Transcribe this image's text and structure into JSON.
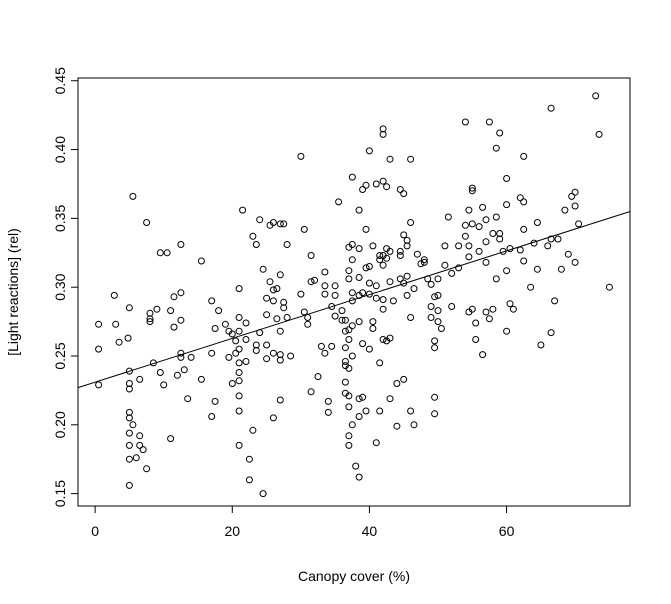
{
  "chart_data": {
    "type": "scatter",
    "title": "",
    "xlabel": "Canopy cover (%)",
    "ylabel": "[Light reactions] (rel)",
    "xlim": [
      -2.5,
      78
    ],
    "ylim": [
      0.141,
      0.452
    ],
    "x_ticks": [
      0,
      20,
      40,
      60
    ],
    "x_tick_labels": [
      "0",
      "20",
      "40",
      "60"
    ],
    "y_ticks": [
      0.15,
      0.2,
      0.25,
      0.3,
      0.35,
      0.4,
      0.45
    ],
    "y_tick_labels": [
      "0.15",
      "0.20",
      "0.25",
      "0.30",
      "0.35",
      "0.40",
      "0.45"
    ],
    "grid": false,
    "legend": "none",
    "marker": "open-circle",
    "colors": {
      "points": "#000000",
      "line": "#000000",
      "background": "#ffffff"
    },
    "regression_line": {
      "x": [
        -2.5,
        78
      ],
      "y": [
        0.227,
        0.355
      ]
    },
    "points": [
      [
        0.5,
        0.229
      ],
      [
        0.5,
        0.255
      ],
      [
        0.5,
        0.273
      ],
      [
        2.8,
        0.294
      ],
      [
        3.0,
        0.273
      ],
      [
        3.5,
        0.26
      ],
      [
        4.8,
        0.263
      ],
      [
        5.0,
        0.285
      ],
      [
        5.0,
        0.239
      ],
      [
        5.0,
        0.23
      ],
      [
        5.0,
        0.226
      ],
      [
        5.0,
        0.209
      ],
      [
        5.0,
        0.205
      ],
      [
        5.0,
        0.194
      ],
      [
        5.0,
        0.185
      ],
      [
        5.0,
        0.175
      ],
      [
        5.0,
        0.156
      ],
      [
        5.5,
        0.366
      ],
      [
        5.5,
        0.2
      ],
      [
        6.0,
        0.176
      ],
      [
        6.5,
        0.192
      ],
      [
        6.5,
        0.185
      ],
      [
        6.5,
        0.233
      ],
      [
        7.0,
        0.182
      ],
      [
        7.5,
        0.347
      ],
      [
        7.5,
        0.168
      ],
      [
        8.0,
        0.281
      ],
      [
        8.0,
        0.277
      ],
      [
        8.0,
        0.275
      ],
      [
        8.5,
        0.245
      ],
      [
        9.0,
        0.284
      ],
      [
        9.5,
        0.238
      ],
      [
        9.5,
        0.325
      ],
      [
        10.0,
        0.229
      ],
      [
        10.5,
        0.325
      ],
      [
        11.0,
        0.19
      ],
      [
        11.0,
        0.283
      ],
      [
        11.5,
        0.271
      ],
      [
        11.5,
        0.293
      ],
      [
        12.0,
        0.236
      ],
      [
        12.5,
        0.331
      ],
      [
        12.5,
        0.296
      ],
      [
        12.5,
        0.276
      ],
      [
        12.5,
        0.252
      ],
      [
        12.5,
        0.249
      ],
      [
        13.0,
        0.24
      ],
      [
        13.5,
        0.219
      ],
      [
        14.0,
        0.249
      ],
      [
        15.5,
        0.319
      ],
      [
        15.5,
        0.233
      ],
      [
        17.0,
        0.29
      ],
      [
        17.0,
        0.252
      ],
      [
        17.5,
        0.27
      ],
      [
        17.5,
        0.217
      ],
      [
        17.0,
        0.206
      ],
      [
        18.0,
        0.283
      ],
      [
        19.0,
        0.273
      ],
      [
        19.5,
        0.268
      ],
      [
        19.5,
        0.249
      ],
      [
        20.0,
        0.266
      ],
      [
        20.0,
        0.23
      ],
      [
        20.5,
        0.261
      ],
      [
        20.5,
        0.252
      ],
      [
        21.0,
        0.255
      ],
      [
        21.0,
        0.299
      ],
      [
        21.0,
        0.278
      ],
      [
        21.0,
        0.268
      ],
      [
        21.0,
        0.245
      ],
      [
        21.0,
        0.238
      ],
      [
        21.0,
        0.232
      ],
      [
        21.0,
        0.221
      ],
      [
        21.0,
        0.21
      ],
      [
        21.0,
        0.185
      ],
      [
        21.5,
        0.356
      ],
      [
        22.0,
        0.274
      ],
      [
        22.0,
        0.262
      ],
      [
        22.0,
        0.246
      ],
      [
        22.5,
        0.175
      ],
      [
        22.5,
        0.16
      ],
      [
        23.0,
        0.196
      ],
      [
        23.0,
        0.337
      ],
      [
        23.5,
        0.331
      ],
      [
        23.5,
        0.258
      ],
      [
        23.5,
        0.254
      ],
      [
        24.0,
        0.349
      ],
      [
        24.0,
        0.267
      ],
      [
        24.5,
        0.15
      ],
      [
        24.5,
        0.313
      ],
      [
        25.0,
        0.292
      ],
      [
        25.0,
        0.28
      ],
      [
        25.0,
        0.258
      ],
      [
        25.0,
        0.248
      ],
      [
        25.5,
        0.345
      ],
      [
        25.5,
        0.304
      ],
      [
        26.0,
        0.347
      ],
      [
        26.0,
        0.298
      ],
      [
        26.0,
        0.29
      ],
      [
        26.0,
        0.252
      ],
      [
        26.0,
        0.205
      ],
      [
        26.5,
        0.299
      ],
      [
        26.5,
        0.277
      ],
      [
        27.0,
        0.346
      ],
      [
        27.0,
        0.309
      ],
      [
        27.0,
        0.268
      ],
      [
        27.0,
        0.251
      ],
      [
        27.0,
        0.247
      ],
      [
        27.0,
        0.218
      ],
      [
        27.5,
        0.346
      ],
      [
        27.5,
        0.289
      ],
      [
        27.5,
        0.285
      ],
      [
        28.0,
        0.331
      ],
      [
        28.0,
        0.278
      ],
      [
        28.5,
        0.25
      ],
      [
        30.0,
        0.395
      ],
      [
        30.0,
        0.295
      ],
      [
        30.5,
        0.342
      ],
      [
        30.5,
        0.282
      ],
      [
        31.0,
        0.278
      ],
      [
        31.0,
        0.273
      ],
      [
        31.5,
        0.323
      ],
      [
        31.5,
        0.304
      ],
      [
        31.5,
        0.224
      ],
      [
        32.0,
        0.305
      ],
      [
        32.5,
        0.235
      ],
      [
        33.0,
        0.257
      ],
      [
        33.5,
        0.301
      ],
      [
        33.5,
        0.295
      ],
      [
        33.5,
        0.252
      ],
      [
        33.5,
        0.311
      ],
      [
        34.0,
        0.217
      ],
      [
        34.0,
        0.209
      ],
      [
        34.5,
        0.286
      ],
      [
        34.5,
        0.257
      ],
      [
        35.0,
        0.294
      ],
      [
        35.0,
        0.279
      ],
      [
        35.0,
        0.301
      ],
      [
        35.5,
        0.362
      ],
      [
        36.0,
        0.283
      ],
      [
        36.0,
        0.276
      ],
      [
        36.5,
        0.276
      ],
      [
        36.5,
        0.268
      ],
      [
        36.5,
        0.256
      ],
      [
        36.5,
        0.246
      ],
      [
        36.5,
        0.243
      ],
      [
        36.5,
        0.231
      ],
      [
        36.5,
        0.223
      ],
      [
        37.0,
        0.329
      ],
      [
        37.0,
        0.312
      ],
      [
        37.0,
        0.306
      ],
      [
        37.0,
        0.269
      ],
      [
        37.0,
        0.262
      ],
      [
        37.0,
        0.241
      ],
      [
        37.0,
        0.221
      ],
      [
        37.0,
        0.213
      ],
      [
        37.0,
        0.192
      ],
      [
        37.0,
        0.185
      ],
      [
        37.5,
        0.38
      ],
      [
        37.5,
        0.331
      ],
      [
        37.5,
        0.32
      ],
      [
        37.5,
        0.296
      ],
      [
        37.5,
        0.29
      ],
      [
        37.5,
        0.272
      ],
      [
        37.5,
        0.25
      ],
      [
        37.5,
        0.2
      ],
      [
        38.0,
        0.17
      ],
      [
        38.5,
        0.356
      ],
      [
        38.5,
        0.328
      ],
      [
        38.5,
        0.307
      ],
      [
        38.5,
        0.294
      ],
      [
        38.5,
        0.275
      ],
      [
        38.5,
        0.219
      ],
      [
        38.5,
        0.206
      ],
      [
        38.5,
        0.162
      ],
      [
        39.0,
        0.371
      ],
      [
        39.0,
        0.296
      ],
      [
        39.0,
        0.259
      ],
      [
        39.0,
        0.22
      ],
      [
        39.5,
        0.374
      ],
      [
        39.5,
        0.342
      ],
      [
        39.5,
        0.314
      ],
      [
        39.5,
        0.21
      ],
      [
        40.0,
        0.399
      ],
      [
        40.0,
        0.315
      ],
      [
        40.0,
        0.303
      ],
      [
        40.0,
        0.295
      ],
      [
        40.0,
        0.255
      ],
      [
        40.5,
        0.33
      ],
      [
        40.5,
        0.275
      ],
      [
        40.5,
        0.27
      ],
      [
        41.0,
        0.375
      ],
      [
        41.0,
        0.301
      ],
      [
        41.0,
        0.292
      ],
      [
        41.0,
        0.187
      ],
      [
        41.5,
        0.323
      ],
      [
        41.5,
        0.32
      ],
      [
        41.5,
        0.245
      ],
      [
        41.5,
        0.21
      ],
      [
        42.0,
        0.415
      ],
      [
        42.0,
        0.411
      ],
      [
        42.0,
        0.377
      ],
      [
        42.0,
        0.323
      ],
      [
        42.0,
        0.316
      ],
      [
        42.0,
        0.291
      ],
      [
        42.0,
        0.284
      ],
      [
        42.0,
        0.262
      ],
      [
        42.5,
        0.373
      ],
      [
        42.5,
        0.328
      ],
      [
        42.5,
        0.321
      ],
      [
        42.5,
        0.261
      ],
      [
        43.0,
        0.393
      ],
      [
        43.0,
        0.326
      ],
      [
        43.0,
        0.304
      ],
      [
        43.0,
        0.263
      ],
      [
        43.0,
        0.219
      ],
      [
        43.5,
        0.29
      ],
      [
        44.0,
        0.23
      ],
      [
        44.0,
        0.199
      ],
      [
        44.5,
        0.371
      ],
      [
        44.5,
        0.326
      ],
      [
        44.5,
        0.323
      ],
      [
        44.5,
        0.306
      ],
      [
        45.0,
        0.368
      ],
      [
        45.0,
        0.338
      ],
      [
        45.0,
        0.303
      ],
      [
        45.0,
        0.233
      ],
      [
        45.5,
        0.334
      ],
      [
        45.5,
        0.33
      ],
      [
        45.5,
        0.308
      ],
      [
        45.5,
        0.294
      ],
      [
        46.0,
        0.393
      ],
      [
        46.0,
        0.347
      ],
      [
        46.0,
        0.278
      ],
      [
        46.0,
        0.21
      ],
      [
        46.5,
        0.299
      ],
      [
        46.5,
        0.2
      ],
      [
        47.0,
        0.324
      ],
      [
        47.5,
        0.317
      ],
      [
        48.0,
        0.32
      ],
      [
        48.0,
        0.318
      ],
      [
        48.5,
        0.306
      ],
      [
        49.0,
        0.302
      ],
      [
        49.0,
        0.286
      ],
      [
        49.0,
        0.278
      ],
      [
        49.5,
        0.293
      ],
      [
        49.5,
        0.261
      ],
      [
        49.5,
        0.256
      ],
      [
        49.5,
        0.22
      ],
      [
        49.5,
        0.208
      ],
      [
        50.0,
        0.306
      ],
      [
        50.0,
        0.294
      ],
      [
        50.0,
        0.283
      ],
      [
        50.0,
        0.275
      ],
      [
        50.5,
        0.27
      ],
      [
        51.0,
        0.33
      ],
      [
        51.0,
        0.316
      ],
      [
        51.5,
        0.351
      ],
      [
        52.0,
        0.31
      ],
      [
        52.0,
        0.286
      ],
      [
        53.0,
        0.33
      ],
      [
        53.0,
        0.314
      ],
      [
        54.0,
        0.42
      ],
      [
        54.0,
        0.345
      ],
      [
        54.0,
        0.337
      ],
      [
        54.5,
        0.33
      ],
      [
        54.5,
        0.322
      ],
      [
        54.5,
        0.356
      ],
      [
        54.5,
        0.282
      ],
      [
        55.0,
        0.372
      ],
      [
        55.0,
        0.37
      ],
      [
        55.0,
        0.346
      ],
      [
        55.0,
        0.284
      ],
      [
        55.5,
        0.262
      ],
      [
        55.5,
        0.274
      ],
      [
        56.0,
        0.344
      ],
      [
        56.0,
        0.326
      ],
      [
        56.5,
        0.358
      ],
      [
        56.5,
        0.251
      ],
      [
        57.0,
        0.349
      ],
      [
        57.0,
        0.333
      ],
      [
        57.0,
        0.318
      ],
      [
        57.0,
        0.282
      ],
      [
        57.5,
        0.42
      ],
      [
        57.5,
        0.277
      ],
      [
        58.0,
        0.284
      ],
      [
        58.0,
        0.339
      ],
      [
        58.5,
        0.401
      ],
      [
        58.5,
        0.351
      ],
      [
        58.5,
        0.306
      ],
      [
        59.0,
        0.412
      ],
      [
        59.0,
        0.339
      ],
      [
        59.0,
        0.335
      ],
      [
        59.5,
        0.326
      ],
      [
        60.0,
        0.379
      ],
      [
        60.0,
        0.36
      ],
      [
        60.0,
        0.312
      ],
      [
        60.0,
        0.268
      ],
      [
        60.5,
        0.328
      ],
      [
        60.5,
        0.288
      ],
      [
        61.0,
        0.284
      ],
      [
        62.0,
        0.365
      ],
      [
        62.0,
        0.327
      ],
      [
        62.5,
        0.395
      ],
      [
        62.5,
        0.319
      ],
      [
        62.5,
        0.362
      ],
      [
        62.5,
        0.342
      ],
      [
        63.5,
        0.3
      ],
      [
        64.0,
        0.332
      ],
      [
        64.5,
        0.347
      ],
      [
        64.5,
        0.313
      ],
      [
        65.0,
        0.258
      ],
      [
        66.0,
        0.33
      ],
      [
        66.5,
        0.43
      ],
      [
        66.5,
        0.335
      ],
      [
        66.5,
        0.267
      ],
      [
        67.0,
        0.29
      ],
      [
        67.5,
        0.335
      ],
      [
        68.0,
        0.313
      ],
      [
        68.5,
        0.356
      ],
      [
        69.0,
        0.324
      ],
      [
        69.5,
        0.366
      ],
      [
        70.0,
        0.369
      ],
      [
        70.0,
        0.359
      ],
      [
        70.5,
        0.346
      ],
      [
        70.0,
        0.318
      ],
      [
        73.0,
        0.439
      ],
      [
        73.5,
        0.411
      ],
      [
        75.0,
        0.3
      ]
    ]
  }
}
